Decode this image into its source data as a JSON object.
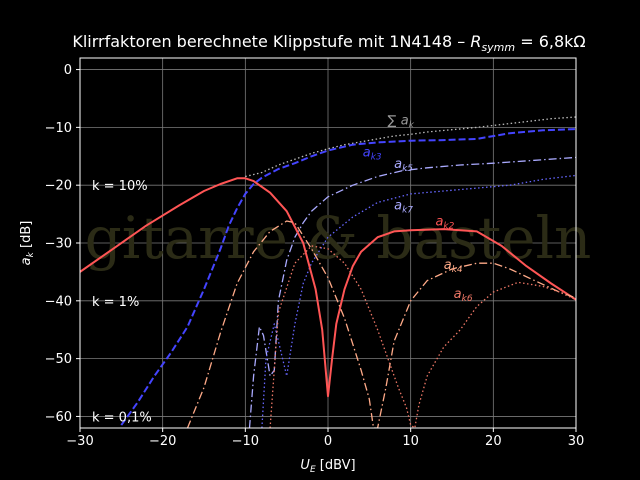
{
  "chart_data": {
    "type": "line",
    "title_main": "Klirrfaktoren berechnete Klippstufe mit 1N4148 – ",
    "title_sym": "R",
    "title_sub": "symm",
    "title_tail": " =  6,8kΩ",
    "xlabel": "U",
    "xlabel_sub": "E",
    "xlabel_unit": " [dBV]",
    "ylabel": "a",
    "ylabel_sub": "k",
    "ylabel_unit": " [dB]",
    "xlim": [
      -30,
      30
    ],
    "ylim": [
      -62,
      2
    ],
    "xticks": [
      -30,
      -20,
      -10,
      0,
      10,
      20,
      30
    ],
    "yticks": [
      0,
      -10,
      -20,
      -30,
      -40,
      -50,
      -60
    ],
    "xtick_labels": [
      "−30",
      "−20",
      "−10",
      "0",
      "10",
      "20",
      "30"
    ],
    "ytick_labels": [
      "0",
      "−10",
      "−20",
      "−30",
      "−40",
      "−50",
      "−60"
    ],
    "grid": true,
    "watermark": "gitarre & basteln",
    "k_labels": [
      {
        "text": "k = 10%",
        "y": -20
      },
      {
        "text": "k = 1%",
        "y": -40
      },
      {
        "text": "k = 0,1%",
        "y": -60
      }
    ],
    "series": [
      {
        "name": "Σ a_k",
        "style": "dotted",
        "color": "#bbbbbb",
        "x": [
          -10,
          -8,
          -6,
          -4,
          -2,
          0,
          2,
          4,
          6,
          8,
          10,
          12,
          15,
          18,
          21,
          24,
          27,
          30
        ],
        "y": [
          -18.5,
          -17.8,
          -16.5,
          -15.5,
          -14.5,
          -13.7,
          -13.0,
          -12.5,
          -12.0,
          -11.5,
          -11.2,
          -10.8,
          -10.4,
          -10.0,
          -9.5,
          -9.0,
          -8.5,
          -8.2
        ]
      },
      {
        "name": "a_k3",
        "style": "dashed",
        "color": "#4444ff",
        "x": [
          -25,
          -23,
          -21,
          -19,
          -17,
          -15,
          -13,
          -12,
          -11,
          -10,
          -9,
          -8,
          -6,
          -4,
          -2,
          0,
          3,
          6,
          10,
          14,
          18,
          22,
          26,
          30
        ],
        "y": [
          -61.5,
          -57.5,
          -53.0,
          -49.0,
          -44.5,
          -38.0,
          -31.0,
          -27.0,
          -24.0,
          -21.5,
          -19.8,
          -18.7,
          -17.2,
          -16.2,
          -15.0,
          -14.0,
          -13.0,
          -12.6,
          -12.3,
          -12.2,
          -12.0,
          -11.0,
          -10.5,
          -10.3
        ]
      },
      {
        "name": "a_k5",
        "style": "dashdot",
        "color": "#aaaaff",
        "x": [
          -9.5,
          -9,
          -8.3,
          -7.8,
          -7,
          -6.5,
          -6,
          -5,
          -4,
          -3,
          -2,
          0,
          3,
          6,
          9,
          12,
          16,
          20,
          25,
          30
        ],
        "y": [
          -62.0,
          -53.0,
          -44.5,
          -46.0,
          -53.0,
          -52.0,
          -40.0,
          -33.0,
          -29.0,
          -26.5,
          -24.5,
          -22.0,
          -20.0,
          -18.5,
          -17.5,
          -17.0,
          -16.5,
          -16.2,
          -15.7,
          -15.2
        ]
      },
      {
        "name": "a_k7",
        "style": "dotted",
        "color": "#6666ff",
        "x": [
          -8,
          -7.5,
          -6.5,
          -5,
          -4,
          -3,
          -2,
          0,
          3,
          6,
          10,
          14,
          18,
          22,
          26,
          30
        ],
        "y": [
          -62.0,
          -50.0,
          -44.0,
          -53.0,
          -44.0,
          -37.0,
          -33.5,
          -29.0,
          -25.5,
          -23.0,
          -21.5,
          -21.0,
          -20.5,
          -20.0,
          -19.0,
          -18.3
        ]
      },
      {
        "name": "a_k2",
        "style": "solid",
        "color": "#ff5555",
        "x": [
          -30,
          -26,
          -22,
          -18,
          -15,
          -13,
          -11,
          -10,
          -9,
          -7,
          -5,
          -3,
          -1.5,
          -0.7,
          0,
          0.5,
          1,
          2,
          3,
          4,
          6,
          8,
          10,
          14,
          18,
          21,
          24,
          27,
          30
        ],
        "y": [
          -35.0,
          -31.0,
          -27.0,
          -23.5,
          -21.0,
          -19.8,
          -18.8,
          -18.8,
          -19.3,
          -21.3,
          -24.5,
          -30.0,
          -38.0,
          -45.0,
          -56.5,
          -50.0,
          -44.0,
          -38.0,
          -34.0,
          -31.5,
          -29.0,
          -28.0,
          -27.8,
          -27.6,
          -28.0,
          -30.5,
          -34.0,
          -37.0,
          -39.8
        ]
      },
      {
        "name": "a_k4",
        "style": "dashdot",
        "color": "#ffaa88",
        "x": [
          -17,
          -15,
          -13,
          -11,
          -9,
          -7,
          -5,
          -4,
          -2,
          0,
          2,
          4,
          5,
          5.5,
          6,
          7,
          8,
          10,
          12,
          15,
          18,
          20,
          22,
          25,
          28,
          30
        ],
        "y": [
          -62.0,
          -55.0,
          -45.5,
          -37.0,
          -31.5,
          -28.0,
          -26.2,
          -26.5,
          -31.0,
          -36.0,
          -43.0,
          -52.0,
          -57.0,
          -62.0,
          -62.0,
          -55.0,
          -47.0,
          -40.0,
          -36.5,
          -34.5,
          -33.5,
          -33.5,
          -34.5,
          -36.5,
          -38.5,
          -39.5
        ]
      },
      {
        "name": "a_k6",
        "style": "dotted",
        "color": "#ee7766",
        "x": [
          -7,
          -6,
          -4,
          -2,
          0,
          2,
          4,
          6,
          7.5,
          8.5,
          9.5,
          10,
          10.5,
          11,
          12,
          14,
          16,
          18,
          20,
          23,
          26,
          28,
          30
        ],
        "y": [
          -62.0,
          -42.0,
          -33.5,
          -30.5,
          -31.0,
          -33.5,
          -38.0,
          -45.0,
          -51.0,
          -55.0,
          -58.5,
          -61.5,
          -62.0,
          -58.0,
          -53.0,
          -48.0,
          -45.0,
          -41.0,
          -38.5,
          -36.8,
          -37.5,
          -38.5,
          -39.8
        ]
      }
    ],
    "annotations": [
      {
        "id": "sum",
        "text": "∑",
        "sub": "",
        "x": 7.2,
        "y": -9.5,
        "color": "#999999"
      },
      {
        "id": "sumk",
        "text": "a",
        "sub": "k",
        "x": 8.8,
        "y": -9.5,
        "color": "#999999"
      },
      {
        "id": "k3",
        "text": "a",
        "sub": "k3",
        "x": 4.2,
        "y": -15.0,
        "color": "#4444ff"
      },
      {
        "id": "k5",
        "text": "a",
        "sub": "k5",
        "x": 8.0,
        "y": -17.0,
        "color": "#aaaaff"
      },
      {
        "id": "k7",
        "text": "a",
        "sub": "k7",
        "x": 8.0,
        "y": -24.2,
        "color": "#aaaaff"
      },
      {
        "id": "k2",
        "text": "a",
        "sub": "k2",
        "x": 13.0,
        "y": -27.0,
        "color": "#ff5555"
      },
      {
        "id": "k4",
        "text": "a",
        "sub": "k4",
        "x": 14.0,
        "y": -34.5,
        "color": "#ffaa88"
      },
      {
        "id": "k6",
        "text": "a",
        "sub": "k6",
        "x": 15.2,
        "y": -39.5,
        "color": "#ee7766"
      }
    ]
  }
}
